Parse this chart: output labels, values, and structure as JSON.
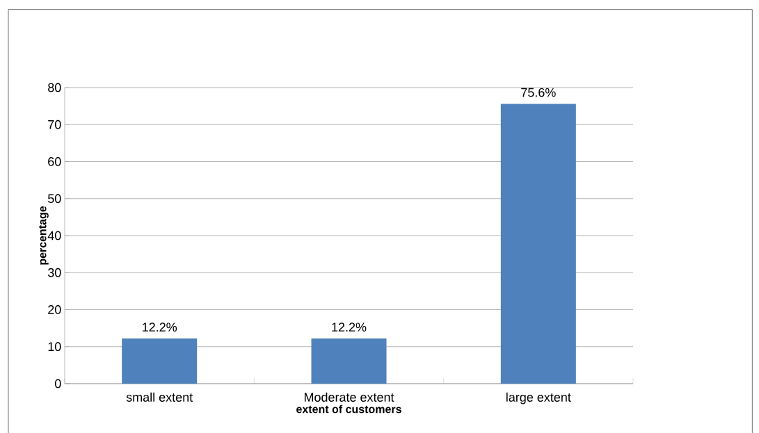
{
  "chart_data": {
    "type": "bar",
    "xlabel": "extent of customers",
    "ylabel": "percentage",
    "categories": [
      "small extent",
      "Moderate extent",
      "large extent"
    ],
    "values": [
      12.2,
      12.2,
      75.6
    ],
    "color": "#4f81bd",
    "value_labels": [
      "12.2%",
      "12.2%",
      "75.6%"
    ],
    "ylim": [
      0,
      80
    ],
    "yticks": [
      0,
      10,
      20,
      30,
      40,
      50,
      60,
      70,
      80
    ],
    "grid": "y"
  }
}
